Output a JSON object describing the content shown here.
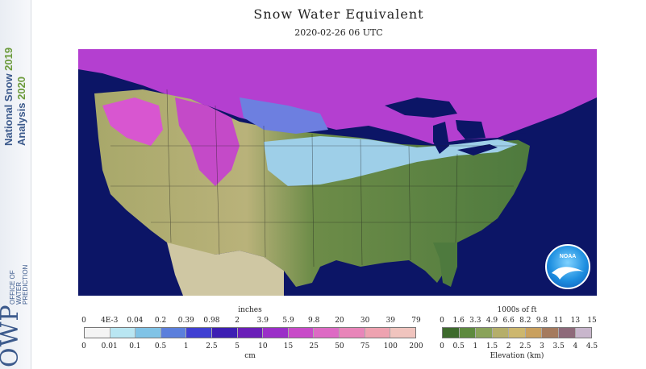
{
  "branding": {
    "line1": "National Snow",
    "year1": "2019",
    "line2": "Analysis",
    "year2": "2020",
    "owp_abbrev": "OWP",
    "owp_full": [
      "OFFICE OF",
      "WATER",
      "PREDICTION"
    ]
  },
  "title": "Snow Water Equivalent",
  "subtitle": "2020-02-26 06 UTC",
  "logo_text": "NOAA",
  "colors": {
    "ocean": "#0c1566",
    "land_low": "#4e7a3e",
    "land_high": "#b9b27a",
    "snow_light": "#9ecfe8",
    "snow_mid": "#6d7fe0",
    "snow_heavy": "#8a35d6",
    "snow_very_heavy": "#d856d0"
  },
  "swe_legend": {
    "unit_top": "inches",
    "unit_bottom": "cm",
    "inch_ticks": [
      "0",
      "4E-3",
      "0.04",
      "0.2",
      "0.39",
      "0.98",
      "2",
      "3.9",
      "5.9",
      "9.8",
      "20",
      "30",
      "39",
      "79"
    ],
    "cm_ticks": [
      "0",
      "0.01",
      "0.1",
      "0.5",
      "1",
      "2.5",
      "5",
      "10",
      "15",
      "25",
      "50",
      "75",
      "100",
      "200"
    ],
    "swatches": [
      "#f4f4f4",
      "#b9e6f2",
      "#80c3e6",
      "#5b7fdc",
      "#3f3fd2",
      "#3d1fb3",
      "#6a1fb8",
      "#9b2fc8",
      "#c84ac8",
      "#dd6ac4",
      "#e885b9",
      "#eea2b0",
      "#f0c4be"
    ]
  },
  "elevation_legend": {
    "unit_top": "1000s of ft",
    "unit_bottom": "Elevation (km)",
    "ft_ticks": [
      "0",
      "1.6",
      "3.3",
      "4.9",
      "6.6",
      "8.2",
      "9.8",
      "11",
      "13",
      "15"
    ],
    "km_ticks": [
      "0",
      "0.5",
      "1",
      "1.5",
      "2",
      "2.5",
      "3",
      "3.5",
      "4",
      "4.5"
    ],
    "swatches": [
      "#3d6a2c",
      "#5e8a3e",
      "#8aa35a",
      "#b5ae6a",
      "#cdb76e",
      "#c9a05e",
      "#a57b5e",
      "#8e6a7a",
      "#c8b6cc"
    ]
  }
}
